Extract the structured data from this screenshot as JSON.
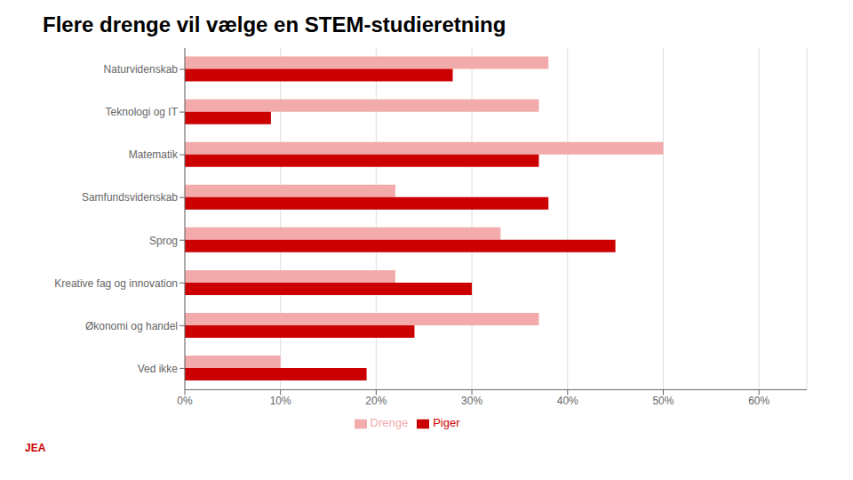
{
  "chart_data": {
    "type": "bar",
    "orientation": "horizontal",
    "title": "Flere drenge vil vælge en STEM-studieretning",
    "categories": [
      "Naturvidenskab",
      "Teknologi og IT",
      "Matematik",
      "Samfundsvidenskab",
      "Sprog",
      "Kreative fag og innovation",
      "Økonomi og handel",
      "Ved ikke"
    ],
    "series": [
      {
        "name": "Drenge",
        "color": "#f2aaaa",
        "values": [
          0.38,
          0.37,
          0.5,
          0.22,
          0.33,
          0.22,
          0.37,
          0.1
        ]
      },
      {
        "name": "Piger",
        "color": "#cc0000",
        "values": [
          0.28,
          0.09,
          0.37,
          0.38,
          0.45,
          0.3,
          0.24,
          0.19
        ]
      }
    ],
    "xlim": [
      0,
      0.65
    ],
    "xticks": [
      {
        "value": 0.0,
        "label": "0%"
      },
      {
        "value": 0.1,
        "label": "10%"
      },
      {
        "value": 0.2,
        "label": "20%"
      },
      {
        "value": 0.3,
        "label": "30%"
      },
      {
        "value": 0.4,
        "label": "40%"
      },
      {
        "value": 0.5,
        "label": "50%"
      },
      {
        "value": 0.6,
        "label": "60%"
      }
    ],
    "grid": true,
    "legend": "bottom",
    "annotations": [
      "JEA"
    ]
  }
}
